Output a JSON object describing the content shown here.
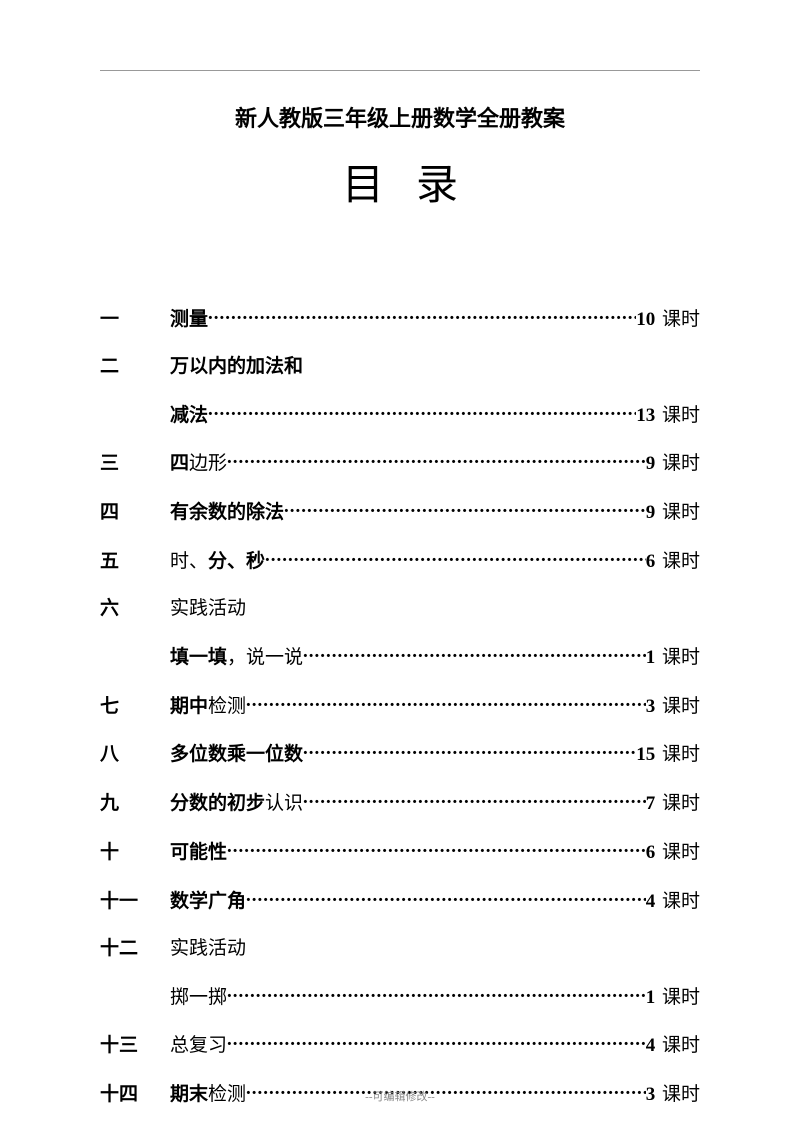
{
  "header_title": "新人教版三年级上册数学全册教案",
  "toc_title": "目录",
  "footer": "--可编辑修改--",
  "dots": "..........................................................................................................",
  "unit": "课时",
  "entries": [
    {
      "num": "一",
      "preline": "",
      "preline_light": false,
      "label_bold": "测量",
      "label_light": "",
      "hours": "10"
    },
    {
      "num": "二",
      "preline": "万以内的加法和",
      "preline_light": false,
      "label_bold": "减法",
      "label_light": "",
      "hours": "13"
    },
    {
      "num": "三",
      "preline": "",
      "preline_light": false,
      "label_bold": "四",
      "label_light": "边形",
      "hours": "9"
    },
    {
      "num": "四",
      "preline": "",
      "preline_light": false,
      "label_bold": "有余数的除法",
      "label_light": "",
      "hours": "9"
    },
    {
      "num": "五",
      "preline": "",
      "preline_light": false,
      "label_bold": "",
      "label_light": "时、",
      "label_bold2": "分、秒",
      "hours": "6"
    },
    {
      "num": "六",
      "preline": "实践活动",
      "preline_light": true,
      "label_bold": "填一填",
      "label_light": "，说一说",
      "hours": "1"
    },
    {
      "num": "七",
      "preline": "",
      "preline_light": false,
      "label_bold": "期中",
      "label_light": "检测",
      "hours": "3"
    },
    {
      "num": "八",
      "preline": "",
      "preline_light": false,
      "label_bold": "多位数乘一位数",
      "label_light": "",
      "hours": "15"
    },
    {
      "num": "九",
      "preline": "",
      "preline_light": false,
      "label_bold": "分数的初步",
      "label_light": "认识",
      "hours": "7"
    },
    {
      "num": "十",
      "preline": "",
      "preline_light": false,
      "label_bold": "可能性",
      "label_light": "",
      "hours": "6"
    },
    {
      "num": "十一",
      "preline": "",
      "preline_light": false,
      "label_bold": "数学广角",
      "label_light": "",
      "hours": "4"
    },
    {
      "num": "十二",
      "preline": "实践活动",
      "preline_light": true,
      "label_bold": "",
      "label_light": "掷一掷",
      "hours": "1"
    },
    {
      "num": "十三",
      "preline": "",
      "preline_light": false,
      "label_bold": "",
      "label_light": "总复习",
      "hours": "4"
    },
    {
      "num": "十四",
      "preline": "",
      "preline_light": false,
      "label_bold": "期末",
      "label_light": "检测",
      "hours": "3"
    }
  ]
}
